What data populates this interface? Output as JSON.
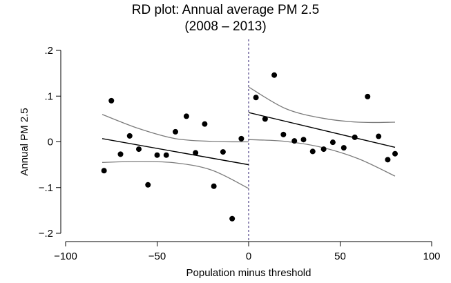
{
  "chart_data": {
    "type": "scatter",
    "title_line1": "RD plot: Annual average PM 2.5",
    "title_line2": "(2008 – 2013)",
    "xlabel": "Population minus threshold",
    "ylabel": "Annual PM 2.5",
    "xlim": [
      -100,
      100
    ],
    "ylim": [
      -0.2,
      0.2
    ],
    "xticks": [
      {
        "value": -100,
        "label": "−100"
      },
      {
        "value": -50,
        "label": "−50"
      },
      {
        "value": 0,
        "label": "0"
      },
      {
        "value": 50,
        "label": "50"
      },
      {
        "value": 100,
        "label": "100"
      }
    ],
    "yticks": [
      {
        "value": 0.2,
        "label": ".2"
      },
      {
        "value": 0.1,
        "label": ".1"
      },
      {
        "value": 0,
        "label": "0"
      },
      {
        "value": -0.1,
        "label": "−.1"
      },
      {
        "value": -0.2,
        "label": "−.2"
      }
    ],
    "cutoff": 0,
    "points": [
      {
        "x": -79,
        "y": -0.063
      },
      {
        "x": -75,
        "y": 0.09
      },
      {
        "x": -70,
        "y": -0.027
      },
      {
        "x": -65,
        "y": 0.013
      },
      {
        "x": -60,
        "y": -0.016
      },
      {
        "x": -55,
        "y": -0.094
      },
      {
        "x": -50,
        "y": -0.029
      },
      {
        "x": -45,
        "y": -0.029
      },
      {
        "x": -40,
        "y": 0.022
      },
      {
        "x": -34,
        "y": 0.056
      },
      {
        "x": -29,
        "y": -0.024
      },
      {
        "x": -24,
        "y": 0.039
      },
      {
        "x": -19,
        "y": -0.097
      },
      {
        "x": -14,
        "y": -0.022
      },
      {
        "x": -9,
        "y": -0.168
      },
      {
        "x": -4,
        "y": 0.007
      },
      {
        "x": 4,
        "y": 0.097
      },
      {
        "x": 9,
        "y": 0.05
      },
      {
        "x": 14,
        "y": 0.146
      },
      {
        "x": 19,
        "y": 0.016
      },
      {
        "x": 25,
        "y": 0.002
      },
      {
        "x": 30,
        "y": 0.005
      },
      {
        "x": 35,
        "y": -0.021
      },
      {
        "x": 41,
        "y": -0.016
      },
      {
        "x": 46,
        "y": -0.001
      },
      {
        "x": 52,
        "y": -0.013
      },
      {
        "x": 58,
        "y": 0.01
      },
      {
        "x": 65,
        "y": 0.099
      },
      {
        "x": 71,
        "y": 0.012
      },
      {
        "x": 76,
        "y": -0.039
      },
      {
        "x": 80,
        "y": -0.026
      }
    ],
    "fit_left": {
      "x": [
        -80,
        0
      ],
      "y": [
        0.007,
        -0.05
      ]
    },
    "fit_right": {
      "x": [
        0,
        80
      ],
      "y": [
        0.064,
        -0.012
      ]
    },
    "ci_left_upper": [
      [
        -80,
        0.06
      ],
      [
        -60,
        0.029
      ],
      [
        -40,
        0.007
      ],
      [
        -20,
        0.001
      ],
      [
        0,
        0.0
      ]
    ],
    "ci_left_lower": [
      [
        -80,
        -0.045
      ],
      [
        -60,
        -0.043
      ],
      [
        -40,
        -0.046
      ],
      [
        -20,
        -0.062
      ],
      [
        0,
        -0.102
      ]
    ],
    "ci_right_upper": [
      [
        0,
        0.12
      ],
      [
        20,
        0.073
      ],
      [
        40,
        0.052
      ],
      [
        60,
        0.043
      ],
      [
        80,
        0.043
      ]
    ],
    "ci_right_lower": [
      [
        0,
        0.005
      ],
      [
        20,
        0.001
      ],
      [
        40,
        -0.012
      ],
      [
        60,
        -0.037
      ],
      [
        80,
        -0.075
      ]
    ]
  }
}
